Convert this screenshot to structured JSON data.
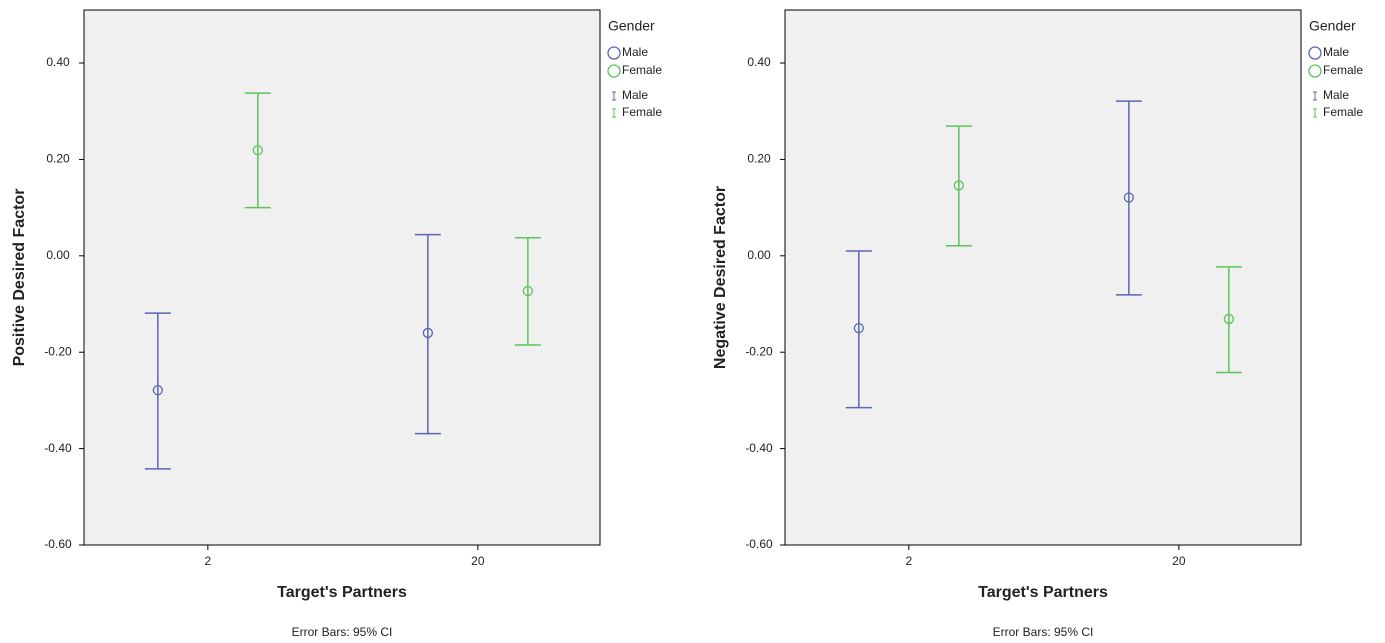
{
  "chart_data": [
    {
      "type": "errorbar",
      "y_label": "Positive Desired Factor",
      "x_label": "Target's Partners",
      "legend_title": "Gender",
      "note": "Error Bars: 95% CI",
      "categories": [
        "2",
        "20"
      ],
      "series": [
        {
          "name": "Male",
          "color": "#5b66b5",
          "values": [
            -0.279,
            -0.16
          ],
          "ci_lower": [
            -0.442,
            -0.369
          ],
          "ci_upper": [
            -0.119,
            0.044
          ]
        },
        {
          "name": "Female",
          "color": "#5ec25e",
          "values": [
            0.219,
            -0.073
          ],
          "ci_lower": [
            0.1,
            -0.185
          ],
          "ci_upper": [
            0.3375,
            0.0375
          ]
        }
      ],
      "ylim": [
        -0.6,
        0.51
      ],
      "yticks": [
        {
          "value": -0.6,
          "label": "-0.60"
        },
        {
          "value": -0.4,
          "label": "-0.40"
        },
        {
          "value": -0.2,
          "label": "-0.20"
        },
        {
          "value": 0,
          "label": "0.00"
        },
        {
          "value": 0.2,
          "label": "0.20"
        },
        {
          "value": 0.4,
          "label": "0.40"
        }
      ]
    },
    {
      "type": "errorbar",
      "y_label": "Negative Desired Factor",
      "x_label": "Target's Partners",
      "legend_title": "Gender",
      "note": "Error Bars: 95% CI",
      "categories": [
        "2",
        "20"
      ],
      "series": [
        {
          "name": "Male",
          "color": "#5b66b5",
          "values": [
            -0.15,
            0.121
          ],
          "ci_lower": [
            -0.315,
            -0.081
          ],
          "ci_upper": [
            0.01,
            0.321
          ]
        },
        {
          "name": "Female",
          "color": "#5ec25e",
          "values": [
            0.146,
            -0.131
          ],
          "ci_lower": [
            0.021,
            -0.242
          ],
          "ci_upper": [
            0.269,
            -0.023
          ]
        }
      ],
      "ylim": [
        -0.6,
        0.51
      ],
      "yticks": [
        {
          "value": -0.6,
          "label": "-0.60"
        },
        {
          "value": -0.4,
          "label": "-0.40"
        },
        {
          "value": -0.2,
          "label": "-0.20"
        },
        {
          "value": 0,
          "label": "0.00"
        },
        {
          "value": 0.2,
          "label": "0.20"
        },
        {
          "value": 0.4,
          "label": "0.40"
        }
      ]
    }
  ]
}
